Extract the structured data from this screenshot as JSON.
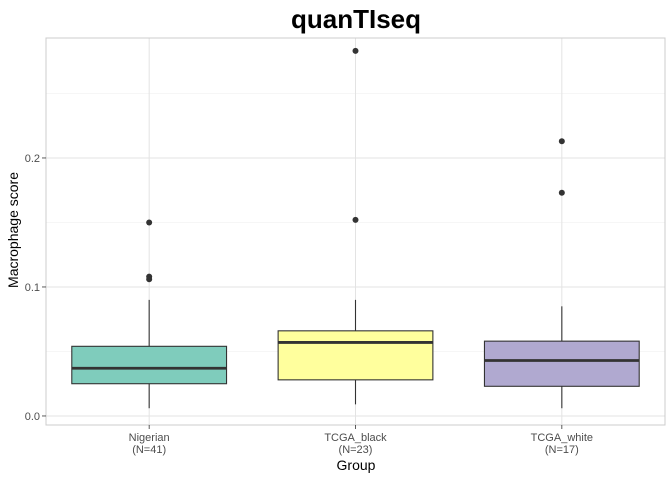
{
  "chart_data": {
    "type": "box",
    "title": "quanTIseq",
    "xlabel": "Group",
    "ylabel": "Macrophage score",
    "ylim": [
      -0.007,
      0.293
    ],
    "yticks": [
      0.0,
      0.1,
      0.2
    ],
    "ytick_labels": [
      "0.0",
      "0.1",
      "0.2"
    ],
    "grid": true,
    "categories": [
      {
        "name": "Nigerian",
        "n_label": "(N=41)",
        "color": "#7fccbc",
        "q1": 0.025,
        "median": 0.037,
        "q3": 0.054,
        "whisker_low": 0.006,
        "whisker_high": 0.09,
        "outliers": [
          0.15,
          0.108,
          0.106
        ]
      },
      {
        "name": "TCGA_black",
        "n_label": "(N=23)",
        "color": "#ffff9d",
        "q1": 0.028,
        "median": 0.057,
        "q3": 0.066,
        "whisker_low": 0.009,
        "whisker_high": 0.09,
        "outliers": [
          0.283,
          0.152
        ]
      },
      {
        "name": "TCGA_white",
        "n_label": "(N=17)",
        "color": "#b0a9d0",
        "q1": 0.023,
        "median": 0.043,
        "q3": 0.058,
        "whisker_low": 0.006,
        "whisker_high": 0.085,
        "outliers": [
          0.213,
          0.173
        ]
      }
    ]
  }
}
